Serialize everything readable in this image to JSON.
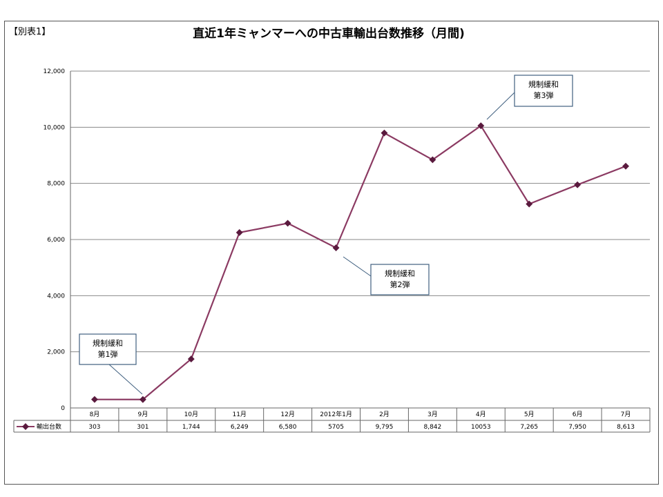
{
  "tag": "【別表1】",
  "chart_data": {
    "type": "line",
    "title": "直近1年ミャンマーへの中古車輸出台数推移（月間)",
    "categories": [
      "8月",
      "9月",
      "10月",
      "11月",
      "12月",
      "2012年1月",
      "2月",
      "3月",
      "4月",
      "5月",
      "6月",
      "7月"
    ],
    "series": [
      {
        "name": "輸出台数",
        "values": [
          303,
          301,
          1744,
          6249,
          6580,
          5705,
          9795,
          8842,
          10053,
          7265,
          7950,
          8613
        ],
        "labels": [
          "303",
          "301",
          "1,744",
          "6,249",
          "6,580",
          "5705",
          "9,795",
          "8,842",
          "10053",
          "7,265",
          "7,950",
          "8,613"
        ]
      }
    ],
    "ylim": [
      0,
      12000
    ],
    "yticks": [
      0,
      2000,
      4000,
      6000,
      8000,
      10000,
      12000
    ],
    "ytick_labels": [
      "0",
      "2,000",
      "4,000",
      "6,000",
      "8,000",
      "10,000",
      "12,000"
    ],
    "grid": true,
    "legend": "data-table-left",
    "colors": {
      "line": "#8b3a62",
      "marker": "#5a1a3e",
      "grid": "#888888",
      "callout_border": "#3f5f7f"
    },
    "annotations": [
      {
        "line1": "規制緩和",
        "line2": "第1弾",
        "points_to": "9月"
      },
      {
        "line1": "規制緩和",
        "line2": "第2弾",
        "points_to": "2012年1月"
      },
      {
        "line1": "規制緩和",
        "line2": "第3弾",
        "points_to": "4月"
      }
    ]
  }
}
